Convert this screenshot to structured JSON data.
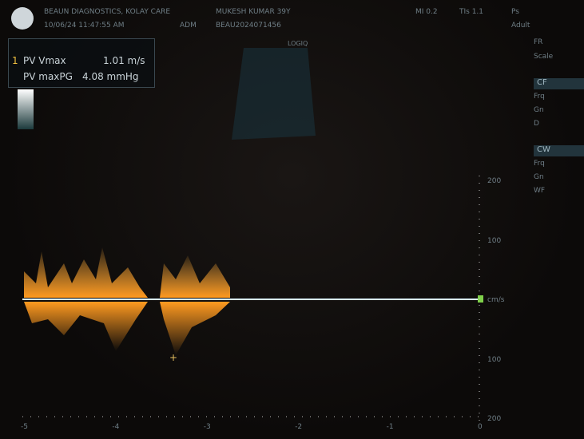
{
  "header": {
    "site": "BEAUN DIAGNOSTICS, KOLAY CARE",
    "patient": "MUKESH KUMAR 39Y",
    "datetime": "10/06/24 11:47:55 AM",
    "operator": "ADM",
    "id": "BEAU2024071456",
    "mi": "MI 0.2",
    "tis": "TIs 1.1",
    "probe": "Ps",
    "preset": "Adult"
  },
  "measurement": {
    "index": "1",
    "rows": [
      {
        "label": "PV Vmax",
        "value": "1.01 m/s"
      },
      {
        "label": "PV maxPG",
        "value": "4.08 mmHg"
      }
    ]
  },
  "image": {
    "logo": "LOGIQ"
  },
  "right_panel": {
    "sections": [
      {
        "header": "CF",
        "rows": [
          "Frq",
          "Gn",
          "D"
        ]
      },
      {
        "header": "CW",
        "rows": [
          "Frq",
          "Gn",
          "WF"
        ]
      }
    ],
    "top_rows": [
      "FR",
      "Scale"
    ]
  },
  "velocity_scale": {
    "labels": [
      "200",
      "100",
      "cm/s",
      "100",
      "200"
    ]
  },
  "time_scale": {
    "labels": [
      "-5",
      "-4",
      "-3",
      "-2",
      "-1",
      "0"
    ]
  }
}
